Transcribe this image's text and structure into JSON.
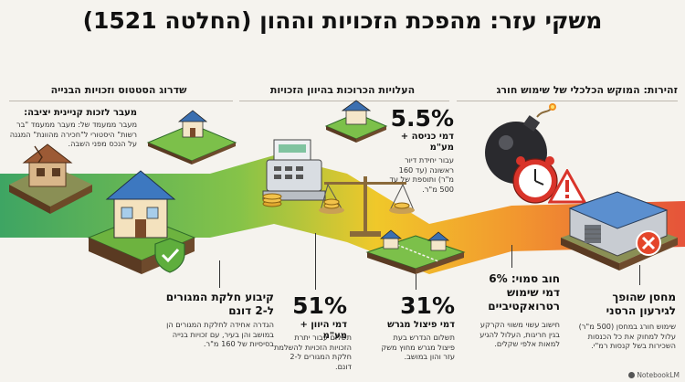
{
  "title": "משקי עזר: מהפכת הזכויות וההון (החלטה 1521)",
  "columns": {
    "right": {
      "heading": "זהירות: המוקש הכלכלי של שימוש חורג",
      "bomb_block": {
        "title": "חוב סמוי: 6% דמי שימוש רטרואקטיביים",
        "description": "חישוב עשוי משווי הקרקע בגין חריגות, העלול להגיע למאות אלפי שקלים."
      },
      "warehouse_block": {
        "title": "מחסן שהופך לגירעון הרסני",
        "description": "שימוש חורג במחסן (500 מ\"ר) עלול למחוק את כל הכנסות השכירות בשל קנסות רמ\"י."
      }
    },
    "middle": {
      "heading": "העלויות הכרוכות בהיוון הזכויות",
      "entry_fee": {
        "value": "5.5%",
        "label": "דמי כניסה + מע\"מ",
        "description": "עבור יחידת דיור ראשונה (עד 160 מ\"ר) ותוספת של עד 500 מ\"ר."
      },
      "split_fee": {
        "value": "31%",
        "label": "דמי פיצול מגרש",
        "description": "תשלום הנדרש בעת פיצול מגרש מחוץ משק עזר והון במושב."
      },
      "capitalization_fee": {
        "value": "51%",
        "label": "דמי היוון + מע\"מ",
        "description": "תשלום עבור יתרת הזכויות הזכויות להשלמת חלקת המגורים ל-2 דונם."
      }
    },
    "left": {
      "heading": "שדרוג הסטטוס וזכויות הבנייה",
      "transition_block": {
        "title": "מעבר לזכות קניינית יציבה:",
        "description": "מעבר ממעמד של: מעבר ממעמד \"בר רשות\" היסטורי ל\"חכירה מהוונת\" המגנה על הנכס מפני השבה."
      },
      "plot_block": {
        "title": "קיבוע חלקת המגורים ל-2 דונם",
        "description": "הגדרה אחידה לחלקת המגורים הן במושב והן בעיר, עם זכויות בנייה בסיסיות של 160 מ\"ר."
      }
    }
  },
  "footer": {
    "brand": "NotebookLM"
  }
}
